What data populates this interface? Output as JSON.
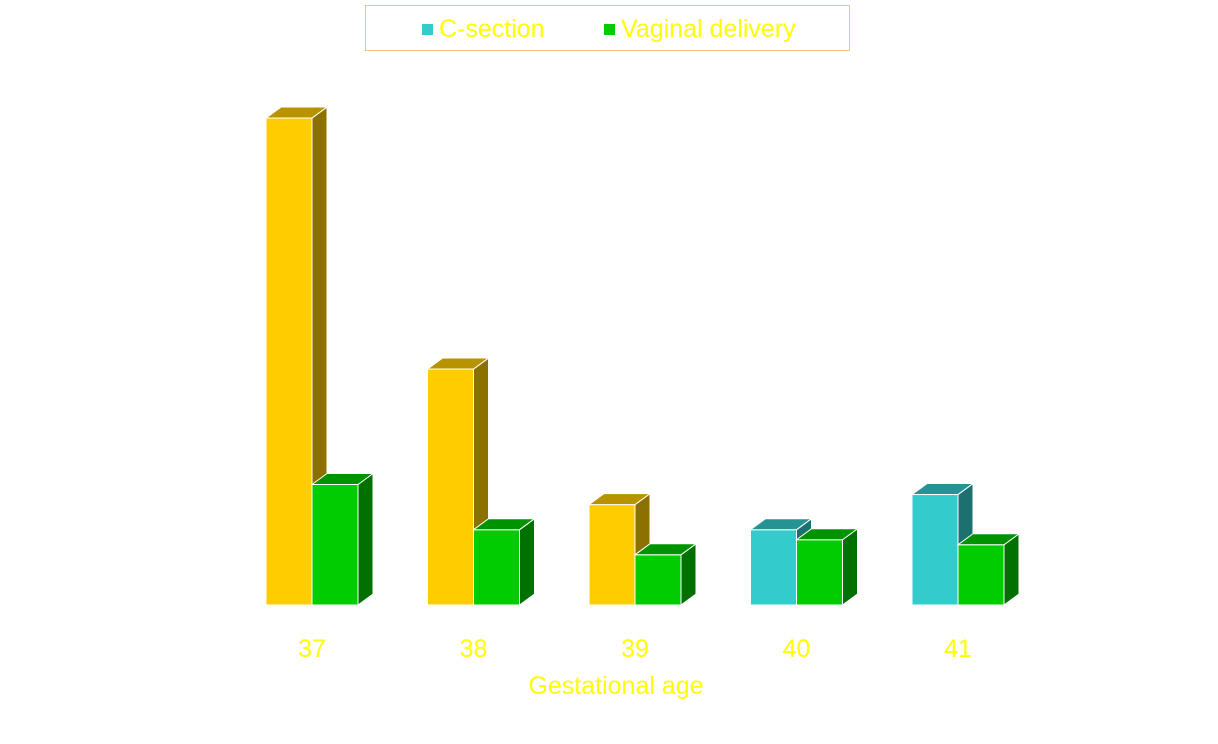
{
  "chart_data": {
    "type": "bar",
    "categories": [
      "37",
      "38",
      "39",
      "40",
      "41"
    ],
    "series": [
      {
        "name": "C-section",
        "values": [
          97,
          47,
          20,
          15,
          22
        ],
        "color": "#33cccc"
      },
      {
        "name": "Vaginal delivery",
        "values": [
          24,
          15,
          10,
          13,
          12
        ],
        "color": "#00cc00"
      }
    ],
    "highlight_color": "#ffcc00",
    "highlighted_categories": [
      "37",
      "38",
      "39"
    ],
    "title": "",
    "xlabel": "Gestational age",
    "ylabel": "",
    "ylim": [
      0,
      100
    ],
    "grid": false,
    "legend_position": "top-center",
    "bar_style": "3d",
    "text_color": "#ffff00"
  }
}
